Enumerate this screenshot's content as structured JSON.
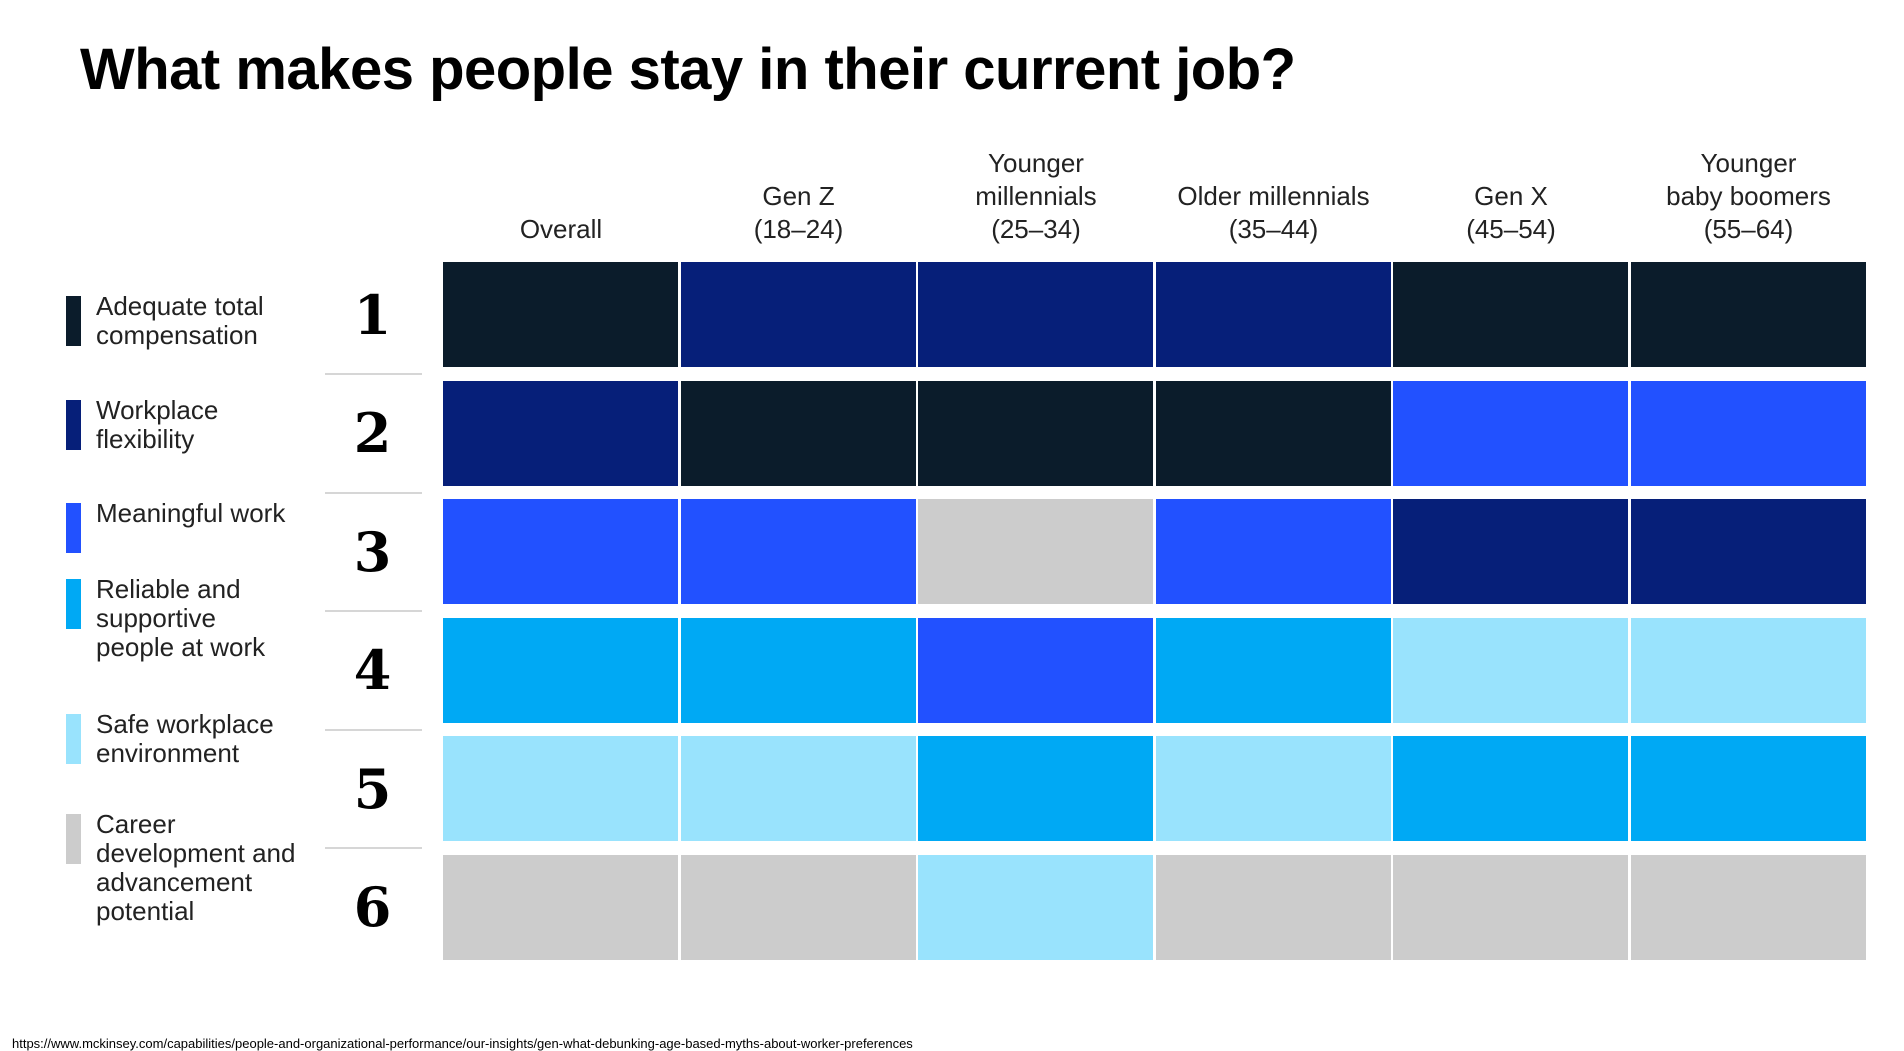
{
  "title": "What makes people stay in their current job?",
  "source": "https://www.mckinsey.com/capabilities/people-and-organizational-performance/our-insights/gen-what-debunking-age-based-myths-about-worker-preferences",
  "chart_data": {
    "type": "heatmap",
    "title": "What makes people stay in their current job?",
    "rows_label": "Rank",
    "ranks": [
      "1",
      "2",
      "3",
      "4",
      "5",
      "6"
    ],
    "columns": [
      "Overall",
      "Gen Z\n(18–24)",
      "Younger\nmillennials\n(25–34)",
      "Older millennials\n(35–44)",
      "Gen X\n(45–54)",
      "Younger\nbaby boomers\n(55–64)"
    ],
    "factors": [
      {
        "id": "comp",
        "label": "Adequate total\ncompensation",
        "color": "#0b1c2b"
      },
      {
        "id": "flex",
        "label": "Workplace\nflexibility",
        "color": "#061f79"
      },
      {
        "id": "meaning",
        "label": "Meaningful work",
        "color": "#2251ff"
      },
      {
        "id": "people",
        "label": "Reliable and\nsupportive\npeople at work",
        "color": "#00a9f4"
      },
      {
        "id": "safe",
        "label": "Safe workplace\nenvironment",
        "color": "#99e3fd"
      },
      {
        "id": "career",
        "label": "Career\ndevelopment and\nadvancement\npotential",
        "color": "#cccccc"
      }
    ],
    "rankings": [
      [
        "comp",
        "flex",
        "meaning",
        "people",
        "safe",
        "career"
      ],
      [
        "flex",
        "comp",
        "meaning",
        "people",
        "safe",
        "career"
      ],
      [
        "flex",
        "comp",
        "career",
        "meaning",
        "people",
        "safe"
      ],
      [
        "flex",
        "comp",
        "meaning",
        "people",
        "safe",
        "career"
      ],
      [
        "comp",
        "meaning",
        "flex",
        "safe",
        "people",
        "career"
      ],
      [
        "comp",
        "meaning",
        "flex",
        "safe",
        "people",
        "career"
      ]
    ],
    "legend_position": "left"
  }
}
